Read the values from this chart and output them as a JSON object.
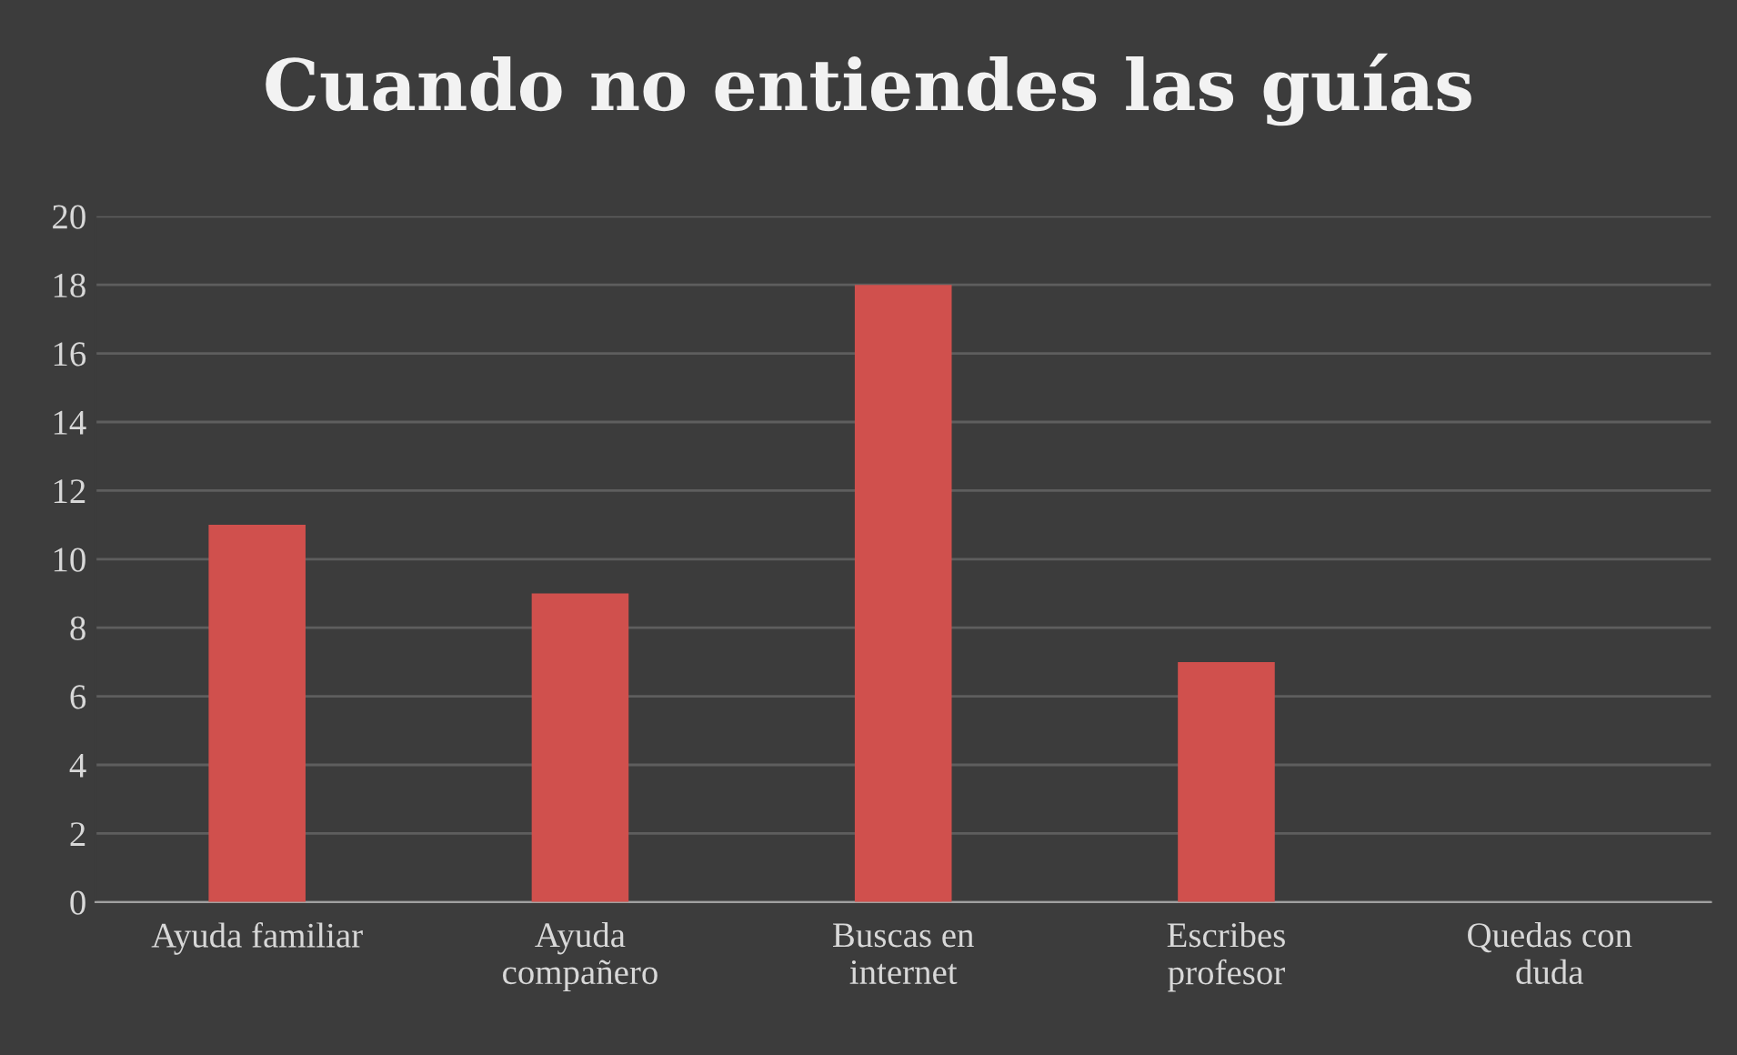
{
  "chart_data": {
    "type": "bar",
    "title": "Cuando no entiendes las guías",
    "categories": [
      "Ayuda familiar",
      "Ayuda\ncompañero",
      "Buscas en\ninternet",
      "Escribes\nprofesor",
      "Quedas con\nduda"
    ],
    "values": [
      11,
      9,
      18,
      7,
      0
    ],
    "color": "#d0504d",
    "ylim": [
      0,
      20
    ],
    "yticks": [
      0,
      2,
      4,
      6,
      8,
      10,
      12,
      14,
      16,
      18,
      20
    ],
    "grid": "y",
    "legend": false
  }
}
